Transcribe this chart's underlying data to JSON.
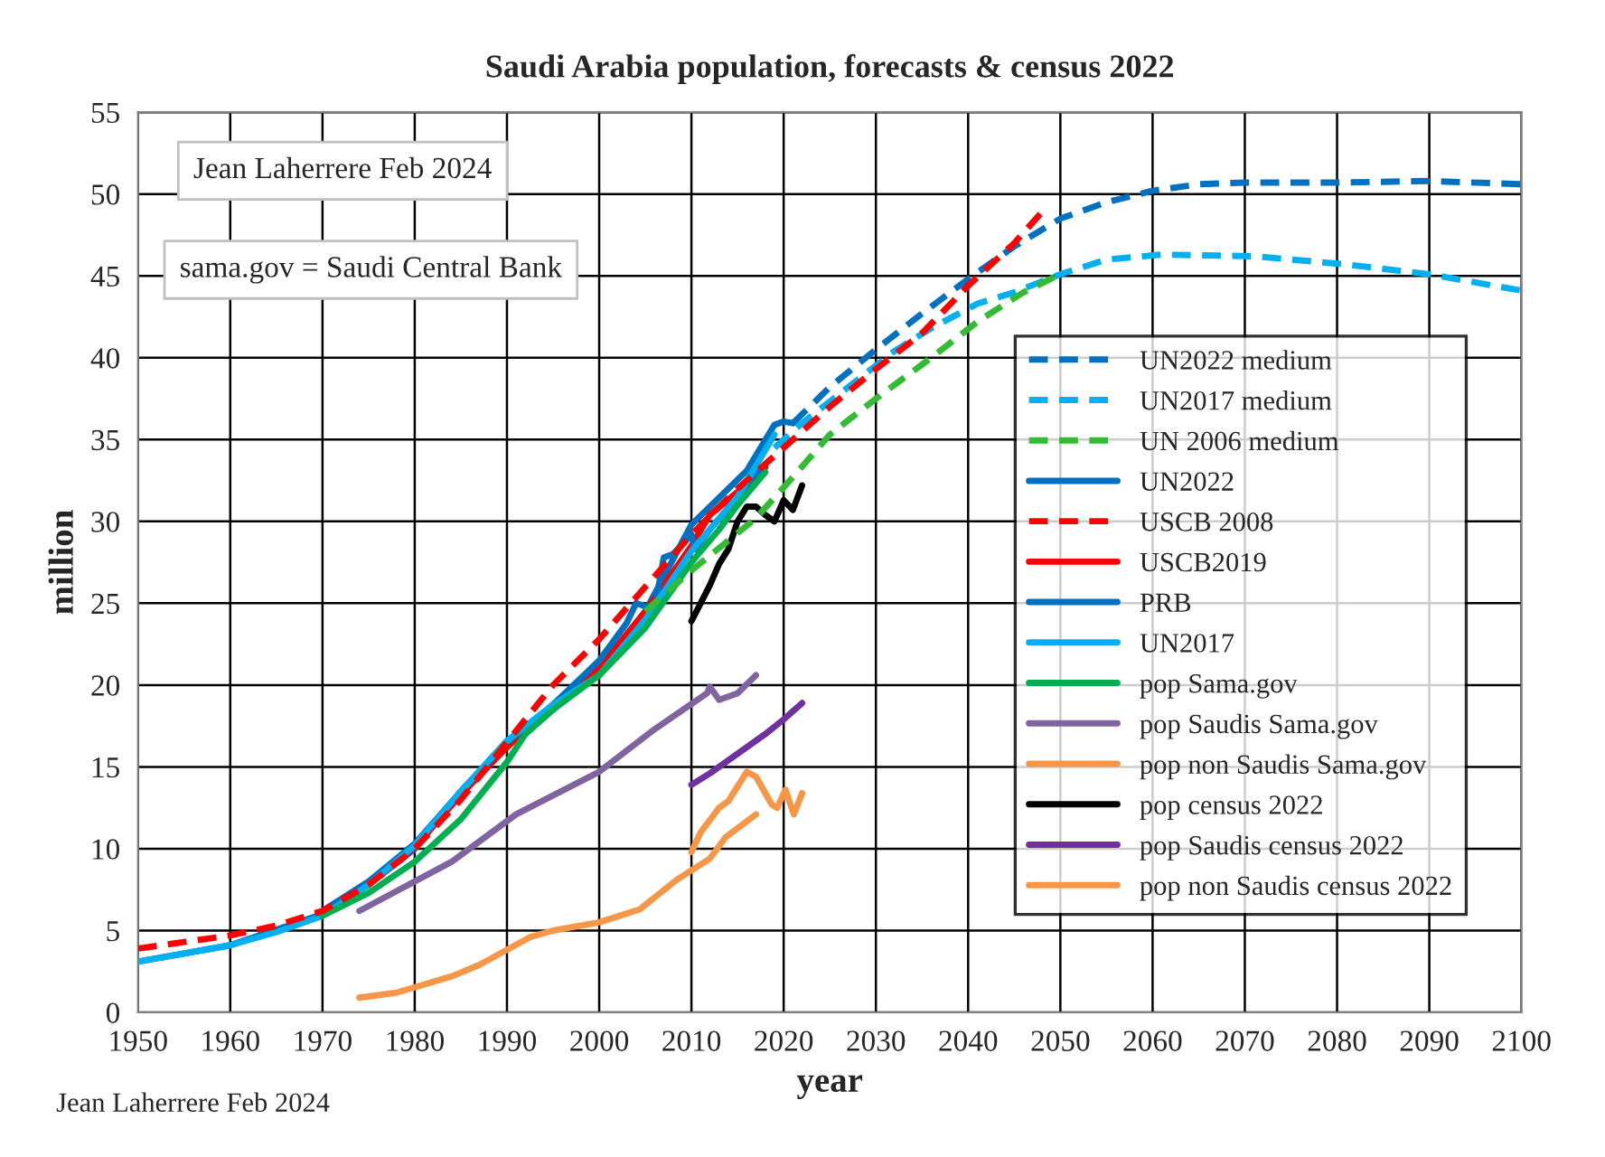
{
  "chart_data": {
    "type": "line",
    "title": "Saudi Arabia population, forecasts & census 2022",
    "xlabel": "year",
    "ylabel": "million",
    "xlim": [
      1950,
      2100
    ],
    "xticks": [
      1950,
      1960,
      1970,
      1980,
      1990,
      2000,
      2010,
      2020,
      2030,
      2040,
      2050,
      2060,
      2070,
      2080,
      2090,
      2100
    ],
    "ylim": [
      0,
      55
    ],
    "yticks": [
      0,
      5,
      10,
      15,
      20,
      25,
      30,
      35,
      40,
      45,
      50,
      55
    ],
    "grid": true,
    "legend": "right",
    "marker": "none",
    "annotations": [
      "Jean Laherrere Feb 2024",
      "sama.gov = Saudi Central Bank",
      "Jean Laherrere Feb 2024"
    ],
    "series": [
      {
        "name": "UN2022 medium",
        "color": "#0070c0",
        "line_style": "dashed",
        "x": [
          2021,
          2025,
          2030,
          2035,
          2040,
          2045,
          2050,
          2055,
          2060,
          2065,
          2070,
          2080,
          2090,
          2100
        ],
        "values": [
          36.0,
          38.2,
          40.5,
          42.7,
          44.8,
          46.8,
          48.5,
          49.5,
          50.2,
          50.6,
          50.7,
          50.7,
          50.8,
          50.6
        ]
      },
      {
        "name": "UN2017 medium",
        "color": "#00b0f0",
        "line_style": "dashed",
        "x": [
          2019,
          2022,
          2027,
          2032,
          2036,
          2041,
          2045,
          2050,
          2055,
          2061,
          2071,
          2081,
          2090,
          2100
        ],
        "values": [
          34.5,
          36.0,
          38.2,
          40.4,
          41.8,
          43.3,
          44.0,
          45.1,
          46.0,
          46.3,
          46.2,
          45.7,
          45.1,
          44.1
        ]
      },
      {
        "name": "UN 2006 medium",
        "color": "#33bb33",
        "line_style": "dashed",
        "x": [
          2005,
          2010,
          2017,
          2021,
          2025,
          2030,
          2036,
          2041,
          2046,
          2050
        ],
        "values": [
          24.5,
          27.0,
          30.2,
          32.7,
          35.3,
          37.5,
          40.0,
          42.2,
          44.0,
          45.1
        ]
      },
      {
        "name": "UN2022",
        "color": "#0070c0",
        "line_style": "solid",
        "x": [
          1950,
          1960,
          1970,
          1975,
          1980,
          1985,
          1990,
          1995,
          2000,
          2005,
          2010,
          2016,
          2019,
          2020,
          2021
        ],
        "values": [
          3.1,
          4.1,
          6.0,
          7.8,
          10.0,
          13.5,
          16.5,
          18.5,
          21.0,
          24.5,
          29.8,
          33.1,
          35.9,
          36.1,
          36.0
        ]
      },
      {
        "name": "USCB 2008",
        "color": "#ff0000",
        "line_style": "dashed",
        "x": [
          1950,
          1955,
          1960,
          1965,
          1970,
          1975,
          1980,
          1985,
          1990,
          1995,
          2000,
          2005,
          2010,
          2015,
          2020,
          2025,
          2030,
          2035,
          2040,
          2045,
          2048
        ],
        "values": [
          3.9,
          4.3,
          4.7,
          5.3,
          6.2,
          7.8,
          10.0,
          13.0,
          16.5,
          20.0,
          22.8,
          26.0,
          29.2,
          32.0,
          34.5,
          37.0,
          39.3,
          41.5,
          44.4,
          47.0,
          48.9
        ]
      },
      {
        "name": "USCB2019",
        "color": "#ff0000",
        "line_style": "solid",
        "x": [
          1975,
          1980,
          1985,
          1990,
          1995,
          2000,
          2005,
          2010,
          2012,
          2015,
          2018
        ],
        "values": [
          7.8,
          10.1,
          13.3,
          16.2,
          18.8,
          21.0,
          24.5,
          28.5,
          30.4,
          31.8,
          33.3
        ]
      },
      {
        "name": "PRB",
        "color": "#0070c0",
        "line_style": "solid",
        "x": [
          1970,
          1975,
          1980,
          1985,
          1990,
          1995,
          2000,
          2003,
          2004,
          2006,
          2007,
          2008,
          2010,
          2010.4,
          2012,
          2015,
          2018
        ],
        "values": [
          6.2,
          8.0,
          10.3,
          13.5,
          16.5,
          18.8,
          21.5,
          23.8,
          25.0,
          24.6,
          27.8,
          28.0,
          29.2,
          28.3,
          29.5,
          31.5,
          33.5
        ]
      },
      {
        "name": "UN2017",
        "color": "#00b0f0",
        "line_style": "solid",
        "x": [
          1950,
          1955,
          1960,
          1965,
          1970,
          1975,
          1980,
          1985,
          1990,
          1995,
          2000,
          2005,
          2010,
          2015,
          2019
        ],
        "values": [
          3.1,
          3.6,
          4.1,
          4.9,
          5.9,
          7.8,
          10.2,
          13.5,
          16.6,
          18.8,
          20.6,
          24.0,
          28.2,
          31.5,
          35.3
        ]
      },
      {
        "name": "pop Sama.gov",
        "color": "#00b050",
        "line_style": "solid",
        "x": [
          1970,
          1975,
          1980,
          1985,
          1990,
          1992,
          1995,
          2000,
          2005,
          2010,
          2013,
          2015,
          2018
        ],
        "values": [
          5.9,
          7.3,
          9.2,
          11.8,
          15.3,
          17.0,
          18.5,
          20.6,
          23.5,
          27.5,
          29.5,
          31.0,
          33.0
        ]
      },
      {
        "name": "pop Saudis Sama.gov",
        "color": "#8064a2",
        "line_style": "solid",
        "x": [
          1974,
          1984,
          1991,
          2000,
          2006,
          2011.7,
          2012,
          2013,
          2015,
          2017
        ],
        "values": [
          6.2,
          9.2,
          12.1,
          14.7,
          17.3,
          19.5,
          19.9,
          19.1,
          19.5,
          20.6
        ]
      },
      {
        "name": "pop non Saudis Sama.gov",
        "color": "#f79646",
        "line_style": "solid",
        "x": [
          1974,
          1978,
          1984,
          1987,
          1992.5,
          1995,
          2000,
          2004.4,
          2008.4,
          2012,
          2013.7,
          2017
        ],
        "values": [
          0.9,
          1.2,
          2.2,
          2.9,
          4.6,
          5.0,
          5.5,
          6.3,
          8.1,
          9.4,
          10.7,
          12.1
        ]
      },
      {
        "name": "pop census 2022",
        "color": "#000000",
        "line_style": "solid",
        "x": [
          2010,
          2012,
          2013,
          2014,
          2015,
          2016,
          2017,
          2018,
          2019,
          2020,
          2021,
          2022
        ],
        "values": [
          23.9,
          26.1,
          27.4,
          28.3,
          30.0,
          30.9,
          30.9,
          30.4,
          30.0,
          31.3,
          30.7,
          32.2
        ]
      },
      {
        "name": "pop Saudis census 2022",
        "color": "#7030a0",
        "line_style": "solid",
        "x": [
          2010,
          2012,
          2014,
          2016,
          2018,
          2020,
          2022
        ],
        "values": [
          13.9,
          14.6,
          15.4,
          16.2,
          17.0,
          17.9,
          18.9
        ]
      },
      {
        "name": "pop non Saudis census 2022",
        "color": "#f79646",
        "line_style": "solid",
        "x": [
          2010,
          2011,
          2013,
          2014,
          2016,
          2017,
          2018.7,
          2019.3,
          2020.2,
          2021.1,
          2022
        ],
        "values": [
          9.8,
          11.0,
          12.5,
          12.9,
          14.7,
          14.4,
          12.7,
          12.5,
          13.6,
          12.1,
          13.4
        ]
      }
    ]
  }
}
